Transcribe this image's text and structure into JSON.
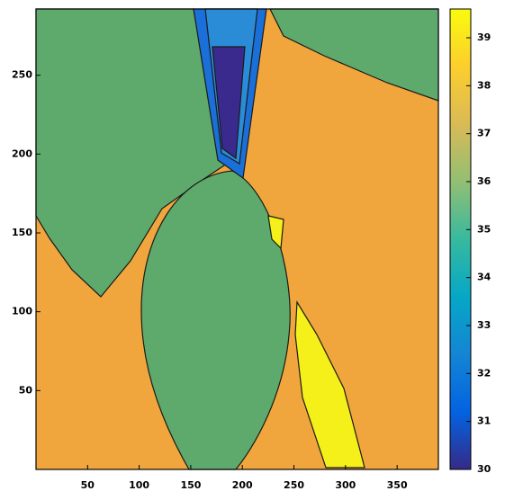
{
  "chart_data": {
    "type": "contourf",
    "xlim": [
      0,
      390
    ],
    "ylim": [
      0,
      292
    ],
    "xticks": [
      50,
      100,
      150,
      200,
      250,
      300,
      350
    ],
    "yticks": [
      50,
      100,
      150,
      200,
      250
    ],
    "clim": [
      30,
      39.6
    ],
    "cticks": [
      30,
      31,
      32,
      33,
      34,
      35,
      36,
      37,
      38,
      39
    ],
    "colormap": [
      "#352a87",
      "#0363e1",
      "#1485d4",
      "#06a7c6",
      "#38b99e",
      "#92bf73",
      "#d9ba56",
      "#fcce2e",
      "#f9fb0e"
    ],
    "region_colors": [
      "#f0a63c",
      "#5ea96c",
      "#1a6fd8",
      "#2a8cd6",
      "#3a2a8e",
      "#f6f01a"
    ]
  }
}
